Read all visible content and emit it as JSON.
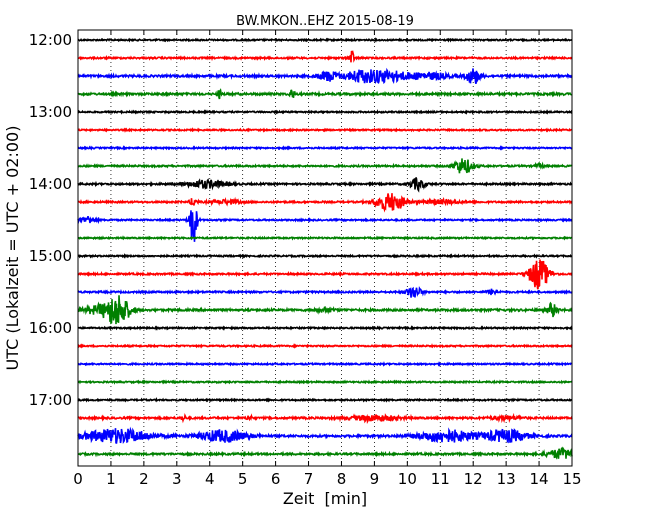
{
  "chart_data": {
    "type": "line",
    "title": "BW.MKON..EHZ 2015-08-19",
    "xlabel": "Zeit  [min]",
    "ylabel": "UTC (Lokalzeit = UTC + 02:00)",
    "xlim": [
      0,
      15
    ],
    "x_ticks": [
      0,
      1,
      2,
      3,
      4,
      5,
      6,
      7,
      8,
      9,
      10,
      11,
      12,
      13,
      14,
      15
    ],
    "y_ticks": [
      "12:00",
      "13:00",
      "14:00",
      "15:00",
      "16:00",
      "17:00"
    ],
    "grid": "vertical-dotted",
    "trace_interval_min": 15,
    "trace_colors": [
      "#000000",
      "#ff0000",
      "#0000ff",
      "#008000"
    ],
    "traces": [
      {
        "start": "12:00",
        "events": [],
        "noise": 0.7
      },
      {
        "start": "12:15",
        "events": [
          {
            "t": 8.3,
            "amp": 8,
            "dur": 0.1
          }
        ],
        "noise": 0.8
      },
      {
        "start": "12:30",
        "events": [
          {
            "t": 7.6,
            "amp": 5,
            "dur": 0.4
          },
          {
            "t": 8.5,
            "amp": 3,
            "dur": 0.5
          },
          {
            "t": 9.2,
            "amp": 6,
            "dur": 1.2
          },
          {
            "t": 10.7,
            "amp": 3,
            "dur": 0.8
          },
          {
            "t": 12.0,
            "amp": 8,
            "dur": 0.3
          }
        ],
        "noise": 1.0
      },
      {
        "start": "12:45",
        "events": [
          {
            "t": 4.3,
            "amp": 4,
            "dur": 0.1
          },
          {
            "t": 6.5,
            "amp": 5,
            "dur": 0.1
          }
        ],
        "noise": 1.0
      },
      {
        "start": "13:00",
        "events": [],
        "noise": 0.7
      },
      {
        "start": "13:15",
        "events": [],
        "noise": 0.7
      },
      {
        "start": "13:30",
        "events": [],
        "noise": 0.7
      },
      {
        "start": "13:45",
        "events": [
          {
            "t": 11.7,
            "amp": 8,
            "dur": 0.4
          },
          {
            "t": 14.0,
            "amp": 2,
            "dur": 0.2
          }
        ],
        "noise": 0.8
      },
      {
        "start": "14:00",
        "events": [
          {
            "t": 3.9,
            "amp": 4,
            "dur": 0.8
          },
          {
            "t": 10.3,
            "amp": 6,
            "dur": 0.3
          }
        ],
        "noise": 0.8
      },
      {
        "start": "14:15",
        "events": [
          {
            "t": 3.5,
            "amp": 4,
            "dur": 0.15
          },
          {
            "t": 4.5,
            "amp": 2,
            "dur": 0.6
          },
          {
            "t": 9.5,
            "amp": 9,
            "dur": 0.6
          },
          {
            "t": 11.0,
            "amp": 2,
            "dur": 0.8
          }
        ],
        "noise": 0.8
      },
      {
        "start": "14:30",
        "events": [
          {
            "t": 0.3,
            "amp": 4,
            "dur": 0.3
          },
          {
            "t": 3.5,
            "amp": 26,
            "dur": 0.15
          }
        ],
        "noise": 0.7
      },
      {
        "start": "14:45",
        "events": [],
        "noise": 0.7
      },
      {
        "start": "15:00",
        "events": [],
        "noise": 0.7
      },
      {
        "start": "15:15",
        "events": [
          {
            "t": 14.0,
            "amp": 16,
            "dur": 0.4
          }
        ],
        "noise": 0.8
      },
      {
        "start": "15:30",
        "events": [
          {
            "t": 10.2,
            "amp": 6,
            "dur": 0.3
          },
          {
            "t": 12.6,
            "amp": 3,
            "dur": 0.2
          }
        ],
        "noise": 0.8
      },
      {
        "start": "15:45",
        "events": [
          {
            "t": 0.6,
            "amp": 4,
            "dur": 0.6
          },
          {
            "t": 1.2,
            "amp": 16,
            "dur": 0.5
          },
          {
            "t": 7.5,
            "amp": 2,
            "dur": 0.4
          },
          {
            "t": 14.4,
            "amp": 7,
            "dur": 0.2
          }
        ],
        "noise": 1.0
      },
      {
        "start": "16:00",
        "events": [],
        "noise": 0.7
      },
      {
        "start": "16:15",
        "events": [],
        "noise": 0.7
      },
      {
        "start": "16:30",
        "events": [],
        "noise": 0.7
      },
      {
        "start": "16:45",
        "events": [],
        "noise": 0.7
      },
      {
        "start": "17:00",
        "events": [],
        "noise": 0.7
      },
      {
        "start": "17:15",
        "events": [
          {
            "t": 3.2,
            "amp": 3,
            "dur": 0.1
          },
          {
            "t": 5.2,
            "amp": 3,
            "dur": 0.1
          },
          {
            "t": 9.0,
            "amp": 3,
            "dur": 1.0
          },
          {
            "t": 13.0,
            "amp": 2,
            "dur": 0.6
          }
        ],
        "noise": 0.9
      },
      {
        "start": "17:30",
        "events": [
          {
            "t": 1.2,
            "amp": 7,
            "dur": 1.4
          },
          {
            "t": 4.4,
            "amp": 6,
            "dur": 1.0
          },
          {
            "t": 11.2,
            "amp": 6,
            "dur": 1.2
          },
          {
            "t": 13.0,
            "amp": 6,
            "dur": 0.9
          }
        ],
        "noise": 1.0
      },
      {
        "start": "17:45",
        "events": [
          {
            "t": 14.7,
            "amp": 5,
            "dur": 0.6
          }
        ],
        "noise": 0.9
      }
    ]
  }
}
